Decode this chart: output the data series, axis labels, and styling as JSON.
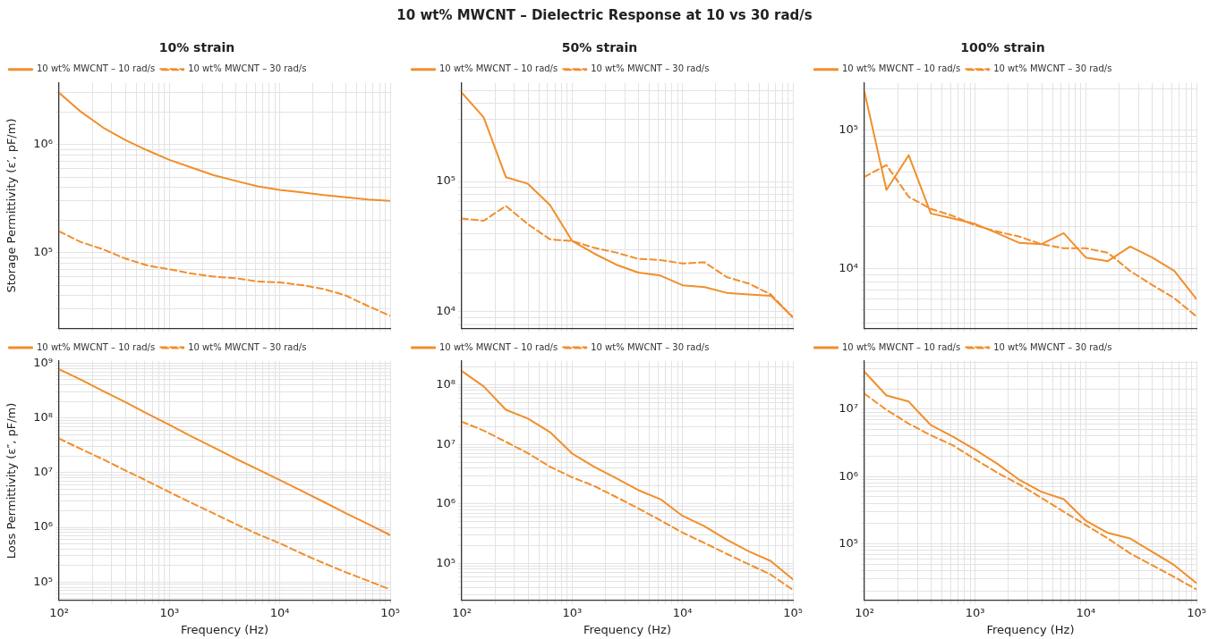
{
  "chart_data": [
    {
      "type": "line",
      "title": "10% strain",
      "ylabel": "Storage Permittivity (ε′, pF/m)",
      "annotations": [
        "10 wt% MWCNT – Dielectric Response at 10 vs 30 rad/s"
      ],
      "log": "xy",
      "grid": true,
      "legend": "top left",
      "marker": "none",
      "tick_labels": "y",
      "x": [
        100,
        158,
        251,
        398,
        631,
        1000,
        1585,
        2512,
        3981,
        6310,
        10000,
        15849,
        25119,
        39811,
        63096,
        100000
      ],
      "series": [
        {
          "name": "10 wt% MWCNT – 10 rad/s",
          "color": "#f28e2b",
          "line_style": "solid",
          "values": [
            3000000,
            2000000,
            1430000,
            1100000,
            880000,
            720000,
            610000,
            520000,
            460000,
            410000,
            380000,
            360000,
            340000,
            325000,
            310000,
            300000
          ]
        },
        {
          "name": "10 wt% MWCNT – 30 rad/s",
          "color": "#f28e2b",
          "line_style": "dashed",
          "values": [
            157000,
            125000,
            107000,
            88000,
            76000,
            70000,
            64000,
            60000,
            58000,
            54000,
            53000,
            50000,
            46000,
            40000,
            32000,
            26000
          ]
        }
      ],
      "xlim": [
        100,
        100000
      ],
      "xticks": [
        {
          "value": 100,
          "label": null
        },
        {
          "value": 200,
          "label": null
        },
        {
          "value": 300,
          "label": null
        },
        {
          "value": 400,
          "label": null
        },
        {
          "value": 500,
          "label": null
        },
        {
          "value": 600,
          "label": null
        },
        {
          "value": 700,
          "label": null
        },
        {
          "value": 800,
          "label": null
        },
        {
          "value": 900,
          "label": null
        },
        {
          "value": 1000,
          "label": null
        },
        {
          "value": 2000,
          "label": null
        },
        {
          "value": 3000,
          "label": null
        },
        {
          "value": 4000,
          "label": null
        },
        {
          "value": 5000,
          "label": null
        },
        {
          "value": 6000,
          "label": null
        },
        {
          "value": 7000,
          "label": null
        },
        {
          "value": 8000,
          "label": null
        },
        {
          "value": 9000,
          "label": null
        },
        {
          "value": 10000,
          "label": null
        },
        {
          "value": 20000,
          "label": null
        },
        {
          "value": 30000,
          "label": null
        },
        {
          "value": 40000,
          "label": null
        },
        {
          "value": 50000,
          "label": null
        },
        {
          "value": 60000,
          "label": null
        },
        {
          "value": 70000,
          "label": null
        },
        {
          "value": 80000,
          "label": null
        },
        {
          "value": 90000,
          "label": null
        },
        {
          "value": 100000,
          "label": null
        }
      ],
      "ylim": [
        20000,
        3700000
      ],
      "yticks": [
        {
          "value": 20000,
          "label": null
        },
        {
          "value": 30000,
          "label": null
        },
        {
          "value": 40000,
          "label": null
        },
        {
          "value": 50000,
          "label": null
        },
        {
          "value": 60000,
          "label": null
        },
        {
          "value": 70000,
          "label": null
        },
        {
          "value": 80000,
          "label": null
        },
        {
          "value": 90000,
          "label": null
        },
        {
          "value": 100000,
          "label": "10⁵"
        },
        {
          "value": 200000,
          "label": null
        },
        {
          "value": 300000,
          "label": null
        },
        {
          "value": 400000,
          "label": null
        },
        {
          "value": 500000,
          "label": null
        },
        {
          "value": 600000,
          "label": null
        },
        {
          "value": 700000,
          "label": null
        },
        {
          "value": 800000,
          "label": null
        },
        {
          "value": 900000,
          "label": null
        },
        {
          "value": 1000000,
          "label": "10⁶"
        },
        {
          "value": 2000000,
          "label": null
        },
        {
          "value": 3000000,
          "label": null
        }
      ]
    },
    {
      "type": "line",
      "title": "50% strain",
      "log": "xy",
      "grid": true,
      "legend": "top left",
      "marker": "none",
      "tick_labels": "y",
      "x": [
        100,
        158,
        251,
        398,
        631,
        1000,
        1585,
        2512,
        3981,
        6310,
        10000,
        15849,
        25119,
        39811,
        63096,
        100000
      ],
      "series": [
        {
          "name": "10 wt% MWCNT – 10 rad/s",
          "color": "#f28e2b",
          "line_style": "solid",
          "values": [
            480000,
            310000,
            108000,
            96000,
            66000,
            35000,
            28000,
            23000,
            20000,
            19000,
            16000,
            15500,
            14000,
            13600,
            13300,
            9100
          ]
        },
        {
          "name": "10 wt% MWCNT – 30 rad/s",
          "color": "#f28e2b",
          "line_style": "dashed",
          "values": [
            52000,
            50000,
            65000,
            47000,
            36000,
            35000,
            31000,
            28500,
            25500,
            25000,
            23500,
            24000,
            18500,
            16500,
            13600,
            9100
          ]
        }
      ],
      "xlim": [
        100,
        100000
      ],
      "xticks": [
        {
          "value": 100,
          "label": null
        },
        {
          "value": 200,
          "label": null
        },
        {
          "value": 300,
          "label": null
        },
        {
          "value": 400,
          "label": null
        },
        {
          "value": 500,
          "label": null
        },
        {
          "value": 600,
          "label": null
        },
        {
          "value": 700,
          "label": null
        },
        {
          "value": 800,
          "label": null
        },
        {
          "value": 900,
          "label": null
        },
        {
          "value": 1000,
          "label": null
        },
        {
          "value": 2000,
          "label": null
        },
        {
          "value": 3000,
          "label": null
        },
        {
          "value": 4000,
          "label": null
        },
        {
          "value": 5000,
          "label": null
        },
        {
          "value": 6000,
          "label": null
        },
        {
          "value": 7000,
          "label": null
        },
        {
          "value": 8000,
          "label": null
        },
        {
          "value": 9000,
          "label": null
        },
        {
          "value": 10000,
          "label": null
        },
        {
          "value": 20000,
          "label": null
        },
        {
          "value": 30000,
          "label": null
        },
        {
          "value": 40000,
          "label": null
        },
        {
          "value": 50000,
          "label": null
        },
        {
          "value": 60000,
          "label": null
        },
        {
          "value": 70000,
          "label": null
        },
        {
          "value": 80000,
          "label": null
        },
        {
          "value": 90000,
          "label": null
        },
        {
          "value": 100000,
          "label": null
        }
      ],
      "ylim": [
        7500,
        570000
      ],
      "yticks": [
        {
          "value": 8000,
          "label": null
        },
        {
          "value": 9000,
          "label": null
        },
        {
          "value": 10000,
          "label": "10⁴"
        },
        {
          "value": 20000,
          "label": null
        },
        {
          "value": 30000,
          "label": null
        },
        {
          "value": 40000,
          "label": null
        },
        {
          "value": 50000,
          "label": null
        },
        {
          "value": 60000,
          "label": null
        },
        {
          "value": 70000,
          "label": null
        },
        {
          "value": 80000,
          "label": null
        },
        {
          "value": 90000,
          "label": null
        },
        {
          "value": 100000,
          "label": "10⁵"
        },
        {
          "value": 200000,
          "label": null
        },
        {
          "value": 300000,
          "label": null
        },
        {
          "value": 400000,
          "label": null
        },
        {
          "value": 500000,
          "label": null
        }
      ]
    },
    {
      "type": "line",
      "title": "100% strain",
      "log": "xy",
      "grid": true,
      "legend": "top left",
      "marker": "none",
      "tick_labels": "y",
      "x": [
        100,
        158,
        251,
        398,
        631,
        1000,
        1585,
        2512,
        3981,
        6310,
        10000,
        15849,
        25119,
        39811,
        63096,
        100000
      ],
      "series": [
        {
          "name": "10 wt% MWCNT – 10 rad/s",
          "color": "#f28e2b",
          "line_style": "solid",
          "values": [
            190000,
            37000,
            66000,
            25000,
            23000,
            21000,
            18000,
            15300,
            15000,
            18000,
            12000,
            11300,
            14400,
            12000,
            9600,
            6000
          ]
        },
        {
          "name": "10 wt% MWCNT – 30 rad/s",
          "color": "#f28e2b",
          "line_style": "dashed",
          "values": [
            46000,
            56000,
            33000,
            27000,
            24000,
            20500,
            18500,
            17000,
            15000,
            14000,
            14000,
            13000,
            9600,
            7600,
            6100,
            4500
          ]
        }
      ],
      "xlim": [
        100,
        100000
      ],
      "xticks": [
        {
          "value": 100,
          "label": null
        },
        {
          "value": 200,
          "label": null
        },
        {
          "value": 300,
          "label": null
        },
        {
          "value": 400,
          "label": null
        },
        {
          "value": 500,
          "label": null
        },
        {
          "value": 600,
          "label": null
        },
        {
          "value": 700,
          "label": null
        },
        {
          "value": 800,
          "label": null
        },
        {
          "value": 900,
          "label": null
        },
        {
          "value": 1000,
          "label": null
        },
        {
          "value": 2000,
          "label": null
        },
        {
          "value": 3000,
          "label": null
        },
        {
          "value": 4000,
          "label": null
        },
        {
          "value": 5000,
          "label": null
        },
        {
          "value": 6000,
          "label": null
        },
        {
          "value": 7000,
          "label": null
        },
        {
          "value": 8000,
          "label": null
        },
        {
          "value": 9000,
          "label": null
        },
        {
          "value": 10000,
          "label": null
        },
        {
          "value": 20000,
          "label": null
        },
        {
          "value": 30000,
          "label": null
        },
        {
          "value": 40000,
          "label": null
        },
        {
          "value": 50000,
          "label": null
        },
        {
          "value": 60000,
          "label": null
        },
        {
          "value": 70000,
          "label": null
        },
        {
          "value": 80000,
          "label": null
        },
        {
          "value": 90000,
          "label": null
        },
        {
          "value": 100000,
          "label": null
        }
      ],
      "ylim": [
        3700,
        220000
      ],
      "yticks": [
        {
          "value": 4000,
          "label": null
        },
        {
          "value": 5000,
          "label": null
        },
        {
          "value": 6000,
          "label": null
        },
        {
          "value": 7000,
          "label": null
        },
        {
          "value": 8000,
          "label": null
        },
        {
          "value": 9000,
          "label": null
        },
        {
          "value": 10000,
          "label": "10⁴"
        },
        {
          "value": 20000,
          "label": null
        },
        {
          "value": 30000,
          "label": null
        },
        {
          "value": 40000,
          "label": null
        },
        {
          "value": 50000,
          "label": null
        },
        {
          "value": 60000,
          "label": null
        },
        {
          "value": 70000,
          "label": null
        },
        {
          "value": 80000,
          "label": null
        },
        {
          "value": 90000,
          "label": null
        },
        {
          "value": 100000,
          "label": "10⁵"
        },
        {
          "value": 200000,
          "label": null
        }
      ]
    },
    {
      "type": "line",
      "xlabel": "Frequency (Hz)",
      "ylabel": "Loss Permittivity (ε″, pF/m)",
      "log": "xy",
      "grid": true,
      "legend": "top left",
      "marker": "none",
      "x": [
        100,
        158,
        251,
        398,
        631,
        1000,
        1585,
        2512,
        3981,
        6310,
        10000,
        15849,
        25119,
        39811,
        63096,
        100000
      ],
      "series": [
        {
          "name": "10 wt% MWCNT – 10 rad/s",
          "color": "#f28e2b",
          "line_style": "solid",
          "values": [
            780000000,
            500000000,
            310000000,
            195000000,
            120000000,
            75000000,
            46000000,
            29000000,
            18000000,
            11500000,
            7300000,
            4600000,
            2900000,
            1800000,
            1150000,
            720000
          ]
        },
        {
          "name": "10 wt% MWCNT – 30 rad/s",
          "color": "#f28e2b",
          "line_style": "dashed",
          "values": [
            42000000,
            27000000,
            17500000,
            11000000,
            7000000,
            4400000,
            2800000,
            1800000,
            1150000,
            750000,
            510000,
            330000,
            220000,
            150000,
            105000,
            73000
          ]
        }
      ],
      "xlim": [
        100,
        100000
      ],
      "xticks": [
        {
          "value": 100,
          "label": "10²"
        },
        {
          "value": 200,
          "label": null
        },
        {
          "value": 300,
          "label": null
        },
        {
          "value": 400,
          "label": null
        },
        {
          "value": 500,
          "label": null
        },
        {
          "value": 600,
          "label": null
        },
        {
          "value": 700,
          "label": null
        },
        {
          "value": 800,
          "label": null
        },
        {
          "value": 900,
          "label": null
        },
        {
          "value": 1000,
          "label": "10³"
        },
        {
          "value": 2000,
          "label": null
        },
        {
          "value": 3000,
          "label": null
        },
        {
          "value": 4000,
          "label": null
        },
        {
          "value": 5000,
          "label": null
        },
        {
          "value": 6000,
          "label": null
        },
        {
          "value": 7000,
          "label": null
        },
        {
          "value": 8000,
          "label": null
        },
        {
          "value": 9000,
          "label": null
        },
        {
          "value": 10000,
          "label": "10⁴"
        },
        {
          "value": 20000,
          "label": null
        },
        {
          "value": 30000,
          "label": null
        },
        {
          "value": 40000,
          "label": null
        },
        {
          "value": 50000,
          "label": null
        },
        {
          "value": 60000,
          "label": null
        },
        {
          "value": 70000,
          "label": null
        },
        {
          "value": 80000,
          "label": null
        },
        {
          "value": 90000,
          "label": null
        },
        {
          "value": 100000,
          "label": "10⁵"
        }
      ],
      "ylim": [
        46000,
        1100000000
      ],
      "yticks": [
        {
          "value": 50000,
          "label": null
        },
        {
          "value": 60000,
          "label": null
        },
        {
          "value": 70000,
          "label": null
        },
        {
          "value": 80000,
          "label": null
        },
        {
          "value": 90000,
          "label": null
        },
        {
          "value": 100000,
          "label": "10⁵"
        },
        {
          "value": 200000,
          "label": null
        },
        {
          "value": 300000,
          "label": null
        },
        {
          "value": 400000,
          "label": null
        },
        {
          "value": 500000,
          "label": null
        },
        {
          "value": 600000,
          "label": null
        },
        {
          "value": 700000,
          "label": null
        },
        {
          "value": 800000,
          "label": null
        },
        {
          "value": 900000,
          "label": null
        },
        {
          "value": 1000000,
          "label": "10⁶"
        },
        {
          "value": 2000000,
          "label": null
        },
        {
          "value": 3000000,
          "label": null
        },
        {
          "value": 4000000,
          "label": null
        },
        {
          "value": 5000000,
          "label": null
        },
        {
          "value": 6000000,
          "label": null
        },
        {
          "value": 7000000,
          "label": null
        },
        {
          "value": 8000000,
          "label": null
        },
        {
          "value": 9000000,
          "label": null
        },
        {
          "value": 10000000,
          "label": "10⁷"
        },
        {
          "value": 20000000,
          "label": null
        },
        {
          "value": 30000000,
          "label": null
        },
        {
          "value": 40000000,
          "label": null
        },
        {
          "value": 50000000,
          "label": null
        },
        {
          "value": 60000000,
          "label": null
        },
        {
          "value": 70000000,
          "label": null
        },
        {
          "value": 80000000,
          "label": null
        },
        {
          "value": 90000000,
          "label": null
        },
        {
          "value": 100000000,
          "label": "10⁸"
        },
        {
          "value": 200000000,
          "label": null
        },
        {
          "value": 300000000,
          "label": null
        },
        {
          "value": 400000000,
          "label": null
        },
        {
          "value": 500000000,
          "label": null
        },
        {
          "value": 600000000,
          "label": null
        },
        {
          "value": 700000000,
          "label": null
        },
        {
          "value": 800000000,
          "label": null
        },
        {
          "value": 900000000,
          "label": null
        },
        {
          "value": 1000000000,
          "label": "10⁹"
        }
      ]
    },
    {
      "type": "line",
      "xlabel": "Frequency (Hz)",
      "log": "xy",
      "grid": true,
      "legend": "top left",
      "marker": "none",
      "x": [
        100,
        158,
        251,
        398,
        631,
        1000,
        1585,
        2512,
        3981,
        6310,
        10000,
        15849,
        25119,
        39811,
        63096,
        100000
      ],
      "series": [
        {
          "name": "10 wt% MWCNT – 10 rad/s",
          "color": "#f28e2b",
          "line_style": "solid",
          "values": [
            170000000,
            94000000,
            38000000,
            27000000,
            16000000,
            7000000,
            4200000,
            2700000,
            1700000,
            1200000,
            630000,
            420000,
            250000,
            160000,
            110000,
            54000
          ]
        },
        {
          "name": "10 wt% MWCNT – 30 rad/s",
          "color": "#f28e2b",
          "line_style": "dashed",
          "values": [
            24000000,
            17000000,
            11000000,
            7100000,
            4200000,
            2800000,
            2000000,
            1300000,
            840000,
            530000,
            330000,
            220000,
            145000,
            97000,
            65000,
            36000
          ]
        }
      ],
      "xlim": [
        100,
        100000
      ],
      "xticks": [
        {
          "value": 100,
          "label": "10²"
        },
        {
          "value": 200,
          "label": null
        },
        {
          "value": 300,
          "label": null
        },
        {
          "value": 400,
          "label": null
        },
        {
          "value": 500,
          "label": null
        },
        {
          "value": 600,
          "label": null
        },
        {
          "value": 700,
          "label": null
        },
        {
          "value": 800,
          "label": null
        },
        {
          "value": 900,
          "label": null
        },
        {
          "value": 1000,
          "label": "10³"
        },
        {
          "value": 2000,
          "label": null
        },
        {
          "value": 3000,
          "label": null
        },
        {
          "value": 4000,
          "label": null
        },
        {
          "value": 5000,
          "label": null
        },
        {
          "value": 6000,
          "label": null
        },
        {
          "value": 7000,
          "label": null
        },
        {
          "value": 8000,
          "label": null
        },
        {
          "value": 9000,
          "label": null
        },
        {
          "value": 10000,
          "label": "10⁴"
        },
        {
          "value": 20000,
          "label": null
        },
        {
          "value": 30000,
          "label": null
        },
        {
          "value": 40000,
          "label": null
        },
        {
          "value": 50000,
          "label": null
        },
        {
          "value": 60000,
          "label": null
        },
        {
          "value": 70000,
          "label": null
        },
        {
          "value": 80000,
          "label": null
        },
        {
          "value": 90000,
          "label": null
        },
        {
          "value": 100000,
          "label": "10⁵"
        }
      ],
      "ylim": [
        24000,
        250000000
      ],
      "yticks": [
        {
          "value": 30000,
          "label": null
        },
        {
          "value": 40000,
          "label": null
        },
        {
          "value": 50000,
          "label": null
        },
        {
          "value": 60000,
          "label": null
        },
        {
          "value": 70000,
          "label": null
        },
        {
          "value": 80000,
          "label": null
        },
        {
          "value": 90000,
          "label": null
        },
        {
          "value": 100000,
          "label": "10⁵"
        },
        {
          "value": 200000,
          "label": null
        },
        {
          "value": 300000,
          "label": null
        },
        {
          "value": 400000,
          "label": null
        },
        {
          "value": 500000,
          "label": null
        },
        {
          "value": 600000,
          "label": null
        },
        {
          "value": 700000,
          "label": null
        },
        {
          "value": 800000,
          "label": null
        },
        {
          "value": 900000,
          "label": null
        },
        {
          "value": 1000000,
          "label": "10⁶"
        },
        {
          "value": 2000000,
          "label": null
        },
        {
          "value": 3000000,
          "label": null
        },
        {
          "value": 4000000,
          "label": null
        },
        {
          "value": 5000000,
          "label": null
        },
        {
          "value": 6000000,
          "label": null
        },
        {
          "value": 7000000,
          "label": null
        },
        {
          "value": 8000000,
          "label": null
        },
        {
          "value": 9000000,
          "label": null
        },
        {
          "value": 10000000,
          "label": "10⁷"
        },
        {
          "value": 20000000,
          "label": null
        },
        {
          "value": 30000000,
          "label": null
        },
        {
          "value": 40000000,
          "label": null
        },
        {
          "value": 50000000,
          "label": null
        },
        {
          "value": 60000000,
          "label": null
        },
        {
          "value": 70000000,
          "label": null
        },
        {
          "value": 80000000,
          "label": null
        },
        {
          "value": 90000000,
          "label": null
        },
        {
          "value": 100000000,
          "label": "10⁸"
        },
        {
          "value": 200000000,
          "label": null
        }
      ]
    },
    {
      "type": "line",
      "xlabel": "Frequency (Hz)",
      "log": "xy",
      "grid": true,
      "legend": "top left",
      "marker": "none",
      "x": [
        100,
        158,
        251,
        398,
        631,
        1000,
        1585,
        2512,
        3981,
        6310,
        10000,
        15849,
        25119,
        39811,
        63096,
        100000
      ],
      "series": [
        {
          "name": "10 wt% MWCNT – 10 rad/s",
          "color": "#f28e2b",
          "line_style": "solid",
          "values": [
            36000000,
            16000000,
            13000000,
            5800000,
            3900000,
            2500000,
            1550000,
            890000,
            590000,
            460000,
            220000,
            145000,
            120000,
            76000,
            48000,
            26000
          ]
        },
        {
          "name": "10 wt% MWCNT – 30 rad/s",
          "color": "#f28e2b",
          "line_style": "dashed",
          "values": [
            17000000,
            9800000,
            6100000,
            4100000,
            2900000,
            1800000,
            1140000,
            760000,
            480000,
            300000,
            190000,
            120000,
            72000,
            48000,
            32000,
            21000
          ]
        }
      ],
      "xlim": [
        100,
        100000
      ],
      "xticks": [
        {
          "value": 100,
          "label": "10²"
        },
        {
          "value": 200,
          "label": null
        },
        {
          "value": 300,
          "label": null
        },
        {
          "value": 400,
          "label": null
        },
        {
          "value": 500,
          "label": null
        },
        {
          "value": 600,
          "label": null
        },
        {
          "value": 700,
          "label": null
        },
        {
          "value": 800,
          "label": null
        },
        {
          "value": 900,
          "label": null
        },
        {
          "value": 1000,
          "label": "10³"
        },
        {
          "value": 2000,
          "label": null
        },
        {
          "value": 3000,
          "label": null
        },
        {
          "value": 4000,
          "label": null
        },
        {
          "value": 5000,
          "label": null
        },
        {
          "value": 6000,
          "label": null
        },
        {
          "value": 7000,
          "label": null
        },
        {
          "value": 8000,
          "label": null
        },
        {
          "value": 9000,
          "label": null
        },
        {
          "value": 10000,
          "label": "10⁴"
        },
        {
          "value": 20000,
          "label": null
        },
        {
          "value": 30000,
          "label": null
        },
        {
          "value": 40000,
          "label": null
        },
        {
          "value": 50000,
          "label": null
        },
        {
          "value": 60000,
          "label": null
        },
        {
          "value": 70000,
          "label": null
        },
        {
          "value": 80000,
          "label": null
        },
        {
          "value": 90000,
          "label": null
        },
        {
          "value": 100000,
          "label": "10⁵"
        }
      ],
      "ylim": [
        14400,
        52000000
      ],
      "yticks": [
        {
          "value": 20000,
          "label": null
        },
        {
          "value": 30000,
          "label": null
        },
        {
          "value": 40000,
          "label": null
        },
        {
          "value": 50000,
          "label": null
        },
        {
          "value": 60000,
          "label": null
        },
        {
          "value": 70000,
          "label": null
        },
        {
          "value": 80000,
          "label": null
        },
        {
          "value": 90000,
          "label": null
        },
        {
          "value": 100000,
          "label": "10⁵"
        },
        {
          "value": 200000,
          "label": null
        },
        {
          "value": 300000,
          "label": null
        },
        {
          "value": 400000,
          "label": null
        },
        {
          "value": 500000,
          "label": null
        },
        {
          "value": 600000,
          "label": null
        },
        {
          "value": 700000,
          "label": null
        },
        {
          "value": 800000,
          "label": null
        },
        {
          "value": 900000,
          "label": null
        },
        {
          "value": 1000000,
          "label": "10⁶"
        },
        {
          "value": 2000000,
          "label": null
        },
        {
          "value": 3000000,
          "label": null
        },
        {
          "value": 4000000,
          "label": null
        },
        {
          "value": 5000000,
          "label": null
        },
        {
          "value": 6000000,
          "label": null
        },
        {
          "value": 7000000,
          "label": null
        },
        {
          "value": 8000000,
          "label": null
        },
        {
          "value": 9000000,
          "label": null
        },
        {
          "value": 10000000,
          "label": "10⁷"
        },
        {
          "value": 20000000,
          "label": null
        },
        {
          "value": 30000000,
          "label": null
        },
        {
          "value": 40000000,
          "label": null
        },
        {
          "value": 50000000,
          "label": null
        }
      ]
    }
  ]
}
